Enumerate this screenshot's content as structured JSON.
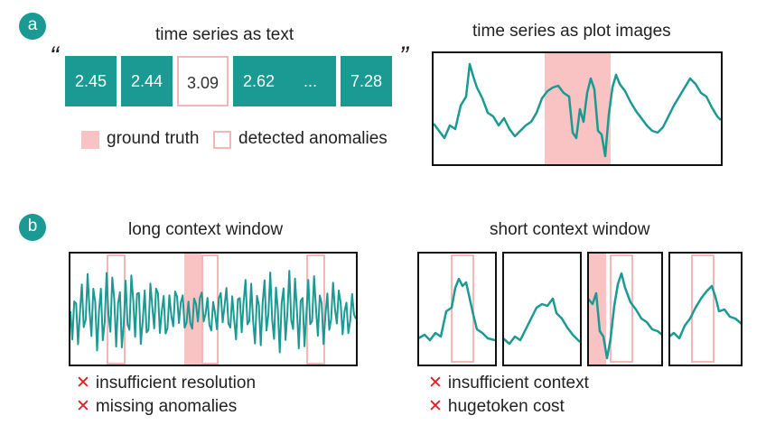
{
  "panel_a": {
    "badge": "a",
    "text_title": "time series as text",
    "image_title": "time series as plot images",
    "open_quote": "“",
    "close_quote": "”",
    "tokens": [
      "2.45",
      "2.44",
      "3.09",
      "2.62",
      "...",
      "7.28"
    ],
    "legend": {
      "ground_truth": "ground truth",
      "detected": "detected anomalies"
    }
  },
  "panel_b": {
    "badge": "b",
    "long_title": "long context window",
    "short_title": "short context window",
    "long_issues": [
      "insufficient resolution",
      "missing anomalies"
    ],
    "short_issues": [
      "insufficient context",
      "hugetoken cost"
    ],
    "cross": "✕"
  },
  "colors": {
    "teal": "#1a9a92",
    "dark_teal": "#2f6f78",
    "ground_truth_fill": "#f9c3c3",
    "detected_border": "#f4b7b7",
    "cross_red": "#e02020"
  }
}
